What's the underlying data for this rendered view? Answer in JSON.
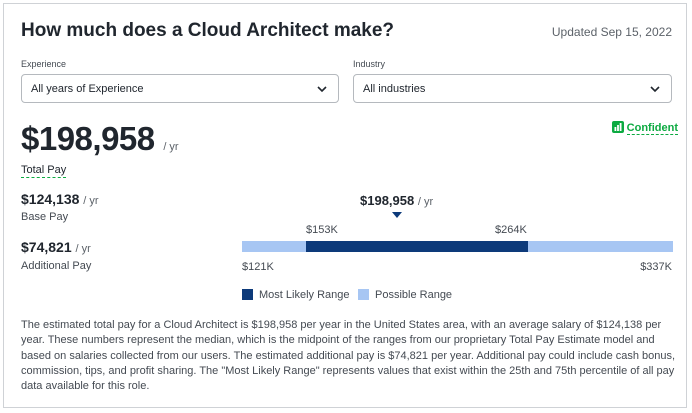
{
  "header": {
    "title": "How much does a Cloud Architect make?",
    "updated": "Updated Sep 15, 2022"
  },
  "filters": {
    "experience": {
      "label": "Experience",
      "value": "All years of Experience"
    },
    "industry": {
      "label": "Industry",
      "value": "All industries"
    }
  },
  "total_pay": {
    "amount": "$198,958",
    "unit": "/ yr",
    "label": "Total Pay"
  },
  "confidence": {
    "label": "Confident",
    "icon": "bar-chart-icon",
    "color": "#0caa41"
  },
  "base_pay": {
    "amount": "$124,138",
    "unit": "/ yr",
    "label": "Base Pay"
  },
  "additional_pay": {
    "amount": "$74,821",
    "unit": "/ yr",
    "label": "Additional Pay"
  },
  "range": {
    "median": "$198,958",
    "median_unit": "/ yr",
    "likely_low": "$153K",
    "likely_high": "$264K",
    "possible_low": "$121K",
    "possible_high": "$337K",
    "likely_color": "#0d3a7a",
    "possible_color": "#a7c6f3"
  },
  "legend": {
    "most_likely": "Most Likely Range",
    "possible": "Possible Range"
  },
  "description": "The estimated total pay for a Cloud Architect is $198,958 per year in the United States area, with an average salary of $124,138 per year. These numbers represent the median, which is the midpoint of the ranges from our proprietary Total Pay Estimate model and based on salaries collected from our users. The estimated additional pay is $74,821 per year. Additional pay could include cash bonus, commission, tips, and profit sharing. The \"Most Likely Range\" represents values that exist within the 25th and 75th percentile of all pay data available for this role."
}
